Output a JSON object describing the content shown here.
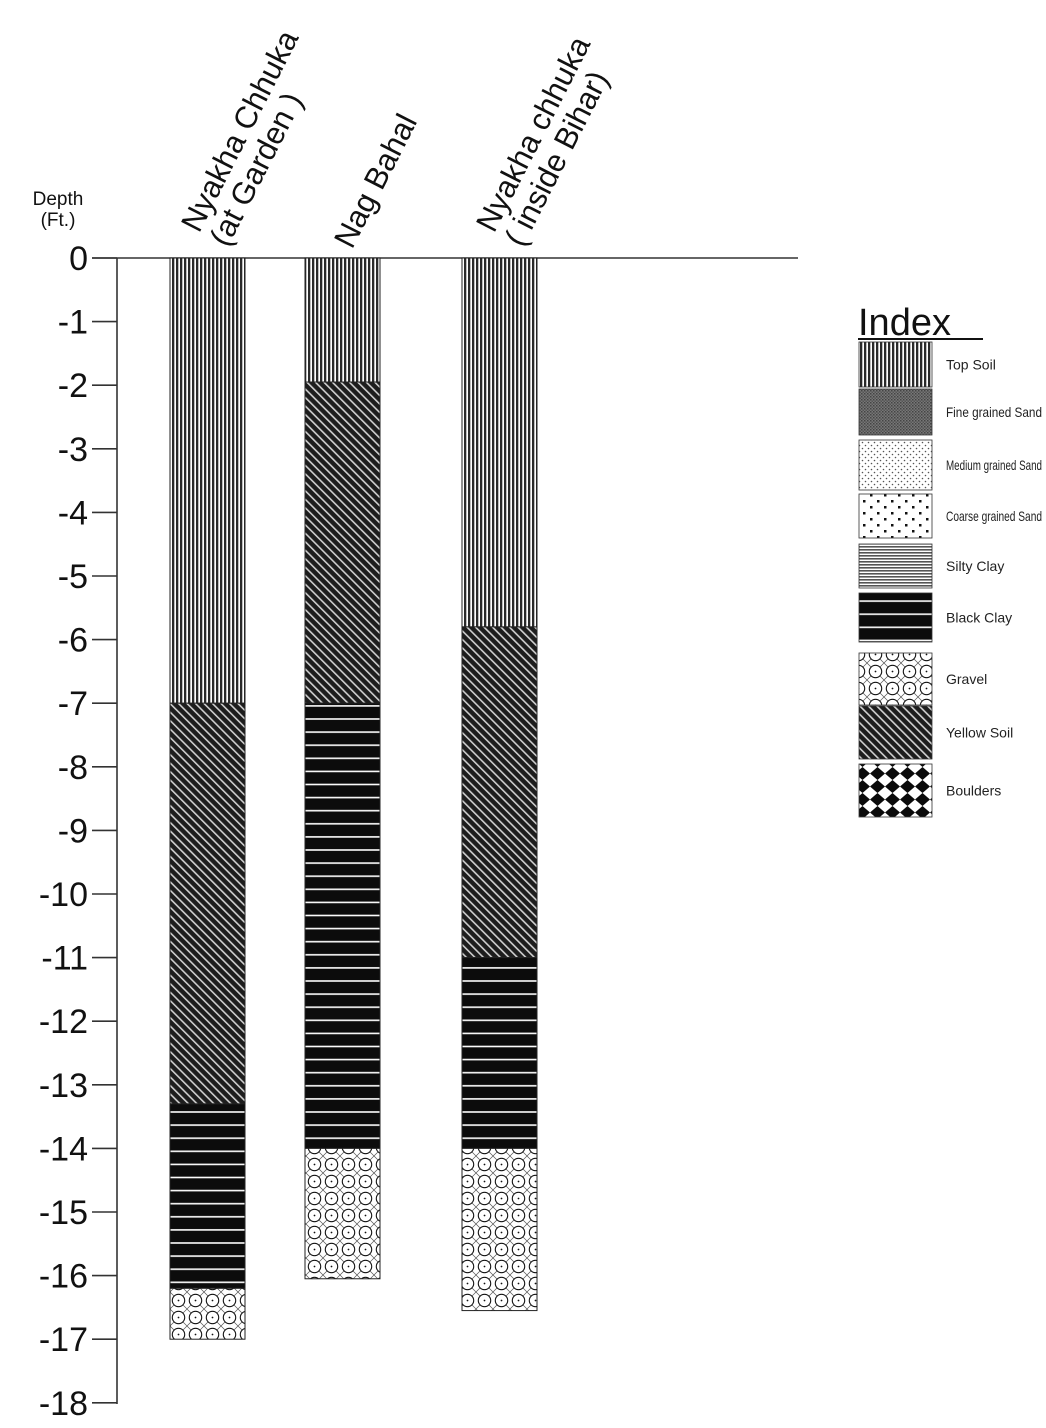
{
  "axis": {
    "label_line1": "Depth",
    "label_line2": "(Ft.)",
    "ticks": [
      "0",
      "-1",
      "-2",
      "-3",
      "-4",
      "-5",
      "-6",
      "-7",
      "-8",
      "-9",
      "-10",
      "-11",
      "-12",
      "-13",
      "-14",
      "-15",
      "-16",
      "-17",
      "-18"
    ],
    "min_depth": 0,
    "max_depth": -18
  },
  "columns": [
    {
      "label_line1": "Nyakha Chhuka",
      "label_line2": "(at Garden )",
      "layers": [
        {
          "soil": "Top Soil",
          "from": 0,
          "to": -7
        },
        {
          "soil": "Yellow Soil",
          "from": -7,
          "to": -13.3
        },
        {
          "soil": "Black Clay",
          "from": -13.3,
          "to": -16.2
        },
        {
          "soil": "Gravel",
          "from": -16.2,
          "to": -17
        }
      ]
    },
    {
      "label_line1": "Nag Bahal",
      "label_line2": "",
      "layers": [
        {
          "soil": "Top Soil",
          "from": 0,
          "to": -1.95
        },
        {
          "soil": "Yellow Soil",
          "from": -1.95,
          "to": -7
        },
        {
          "soil": "Black Clay",
          "from": -7,
          "to": -14
        },
        {
          "soil": "Gravel",
          "from": -14,
          "to": -16.05
        }
      ]
    },
    {
      "label_line1": "Nyakha chhuka",
      "label_line2": "( inside Bihar)",
      "layers": [
        {
          "soil": "Top Soil",
          "from": 0,
          "to": -5.8
        },
        {
          "soil": "Yellow Soil",
          "from": -5.8,
          "to": -11
        },
        {
          "soil": "Black Clay",
          "from": -11,
          "to": -14
        },
        {
          "soil": "Gravel",
          "from": -14,
          "to": -16.55
        }
      ]
    }
  ],
  "index": {
    "title": "Index",
    "items": [
      {
        "label": "Top Soil",
        "pattern": "top-soil"
      },
      {
        "label": "Fine grained Sand",
        "pattern": "fine-sand"
      },
      {
        "label": "Medium grained Sand",
        "pattern": "medium-sand"
      },
      {
        "label": "Coarse grained Sand",
        "pattern": "coarse-sand"
      },
      {
        "label": "Silty Clay",
        "pattern": "silty-clay"
      },
      {
        "label": "Black Clay",
        "pattern": "black-clay"
      },
      {
        "label": "Gravel",
        "pattern": "gravel"
      },
      {
        "label": "Yellow Soil",
        "pattern": "yellow-soil"
      },
      {
        "label": "Boulders",
        "pattern": "boulders"
      }
    ]
  }
}
